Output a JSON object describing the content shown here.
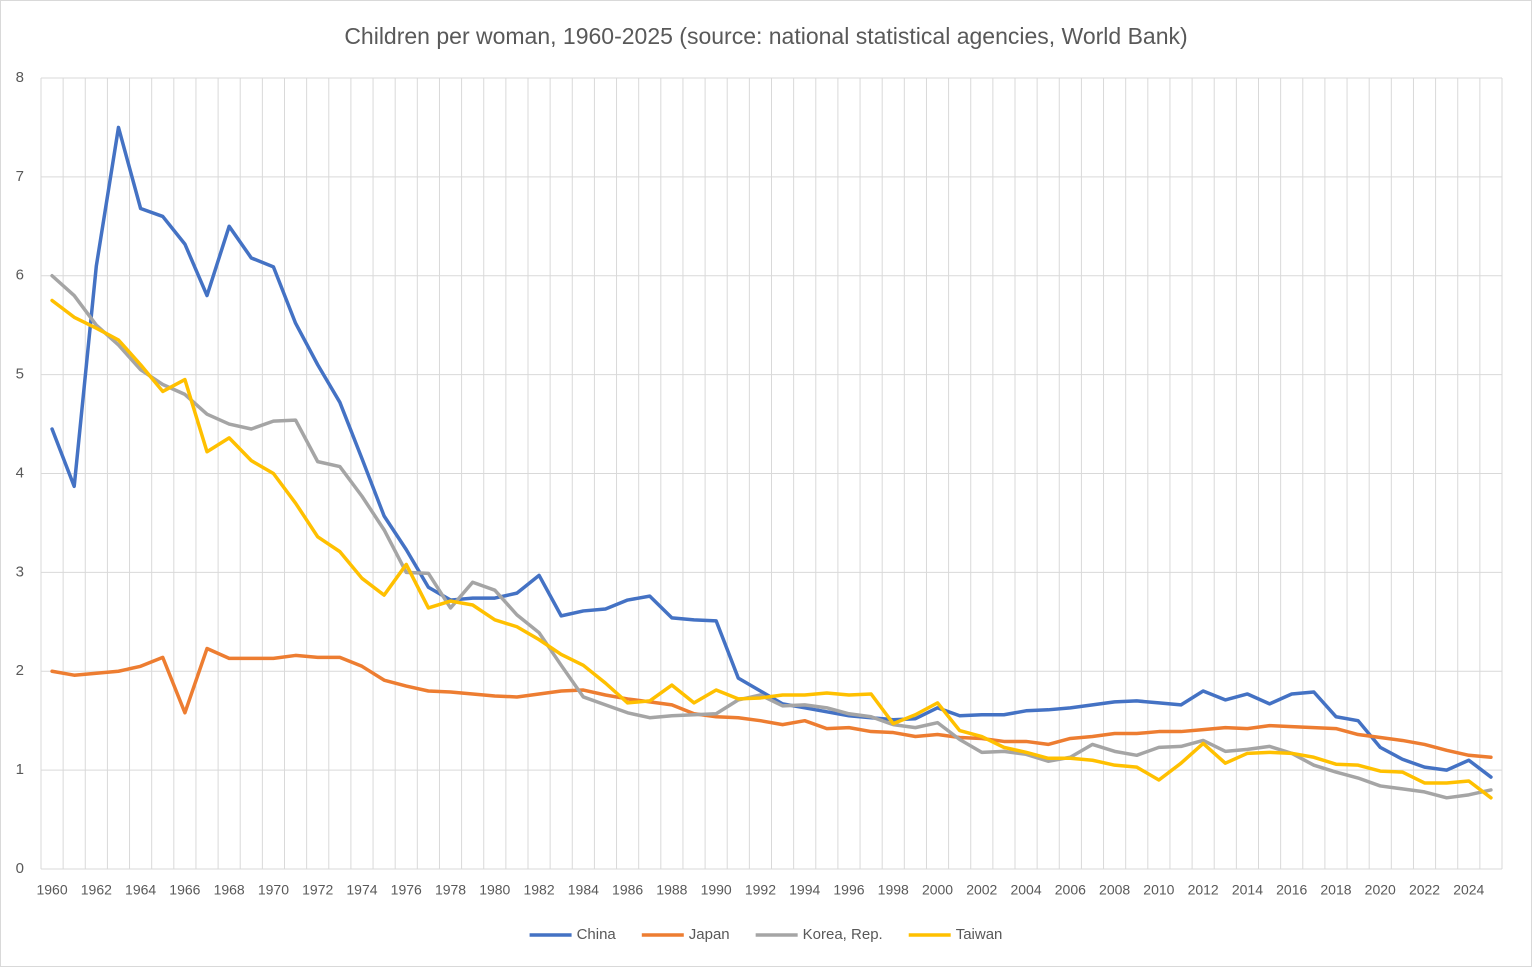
{
  "chart_data": {
    "type": "line",
    "title": "Children per woman, 1960-2025 (source: national statistical agencies, World Bank)",
    "categories": [
      "1960",
      null,
      "1962",
      null,
      "1964",
      null,
      "1966",
      null,
      "1968",
      null,
      "1970",
      null,
      "1972",
      null,
      "1974",
      null,
      "1976",
      null,
      "1978",
      null,
      "1980",
      null,
      "1982",
      null,
      "1984",
      null,
      "1986",
      null,
      "1988",
      null,
      "1990",
      null,
      "1992",
      null,
      "1994",
      null,
      "1996",
      null,
      "1998",
      null,
      "2000",
      null,
      "2002",
      null,
      "2004",
      null,
      "2006",
      null,
      "2008",
      null,
      "2010",
      null,
      "2012",
      null,
      "2014",
      null,
      "2016",
      null,
      "2018",
      null,
      "2020",
      null,
      "2022",
      null,
      "2024",
      null
    ],
    "series": [
      {
        "name": "China",
        "color": "#4472c4",
        "values": [
          4.45,
          3.87,
          6.1,
          7.5,
          6.68,
          6.6,
          6.32,
          5.8,
          6.5,
          6.18,
          6.09,
          5.52,
          5.1,
          4.72,
          4.15,
          3.57,
          3.23,
          2.85,
          2.72,
          2.74,
          2.74,
          2.79,
          2.97,
          2.56,
          2.61,
          2.63,
          2.72,
          2.76,
          2.54,
          2.52,
          2.51,
          1.93,
          1.8,
          1.67,
          1.63,
          1.59,
          1.55,
          1.53,
          1.51,
          1.52,
          1.63,
          1.55,
          1.56,
          1.56,
          1.6,
          1.61,
          1.63,
          1.66,
          1.69,
          1.7,
          1.68,
          1.66,
          1.8,
          1.71,
          1.77,
          1.67,
          1.77,
          1.79,
          1.54,
          1.5,
          1.23,
          1.11,
          1.03,
          1.0,
          1.1,
          0.93
        ]
      },
      {
        "name": "Japan",
        "color": "#ed7d31",
        "values": [
          2.0,
          1.96,
          1.98,
          2.0,
          2.05,
          2.14,
          1.58,
          2.23,
          2.13,
          2.13,
          2.13,
          2.16,
          2.14,
          2.14,
          2.05,
          1.91,
          1.85,
          1.8,
          1.79,
          1.77,
          1.75,
          1.74,
          1.77,
          1.8,
          1.81,
          1.76,
          1.72,
          1.69,
          1.66,
          1.57,
          1.54,
          1.53,
          1.5,
          1.46,
          1.5,
          1.42,
          1.43,
          1.39,
          1.38,
          1.34,
          1.36,
          1.33,
          1.32,
          1.29,
          1.29,
          1.26,
          1.32,
          1.34,
          1.37,
          1.37,
          1.39,
          1.39,
          1.41,
          1.43,
          1.42,
          1.45,
          1.44,
          1.43,
          1.42,
          1.36,
          1.33,
          1.3,
          1.26,
          1.2,
          1.15,
          1.13
        ]
      },
      {
        "name": "Korea, Rep.",
        "color": "#a5a5a5",
        "values": [
          6.0,
          5.8,
          5.5,
          5.3,
          5.05,
          4.9,
          4.8,
          4.6,
          4.5,
          4.45,
          4.53,
          4.54,
          4.12,
          4.07,
          3.77,
          3.43,
          3.0,
          2.99,
          2.64,
          2.9,
          2.82,
          2.57,
          2.39,
          2.06,
          1.74,
          1.66,
          1.58,
          1.53,
          1.55,
          1.56,
          1.57,
          1.71,
          1.76,
          1.65,
          1.66,
          1.63,
          1.57,
          1.54,
          1.46,
          1.43,
          1.48,
          1.31,
          1.18,
          1.19,
          1.16,
          1.09,
          1.13,
          1.26,
          1.19,
          1.15,
          1.23,
          1.24,
          1.3,
          1.19,
          1.21,
          1.24,
          1.17,
          1.05,
          0.98,
          0.92,
          0.84,
          0.81,
          0.78,
          0.72,
          0.75,
          0.8
        ]
      },
      {
        "name": "Taiwan",
        "color": "#ffc000",
        "values": [
          5.75,
          5.58,
          5.47,
          5.35,
          5.1,
          4.83,
          4.95,
          4.22,
          4.36,
          4.13,
          4.0,
          3.7,
          3.36,
          3.21,
          2.94,
          2.77,
          3.08,
          2.64,
          2.71,
          2.67,
          2.52,
          2.45,
          2.32,
          2.17,
          2.06,
          1.88,
          1.68,
          1.7,
          1.86,
          1.68,
          1.81,
          1.72,
          1.73,
          1.76,
          1.76,
          1.78,
          1.76,
          1.77,
          1.47,
          1.56,
          1.68,
          1.4,
          1.34,
          1.23,
          1.18,
          1.12,
          1.12,
          1.1,
          1.05,
          1.03,
          0.9,
          1.07,
          1.27,
          1.07,
          1.17,
          1.18,
          1.17,
          1.13,
          1.06,
          1.05,
          0.99,
          0.98,
          0.87,
          0.87,
          0.89,
          0.72
        ]
      }
    ],
    "ylim": [
      0,
      8
    ],
    "yticks": [
      0,
      1,
      2,
      3,
      4,
      5,
      6,
      7,
      8
    ],
    "grid": true,
    "legend": "bottom"
  }
}
